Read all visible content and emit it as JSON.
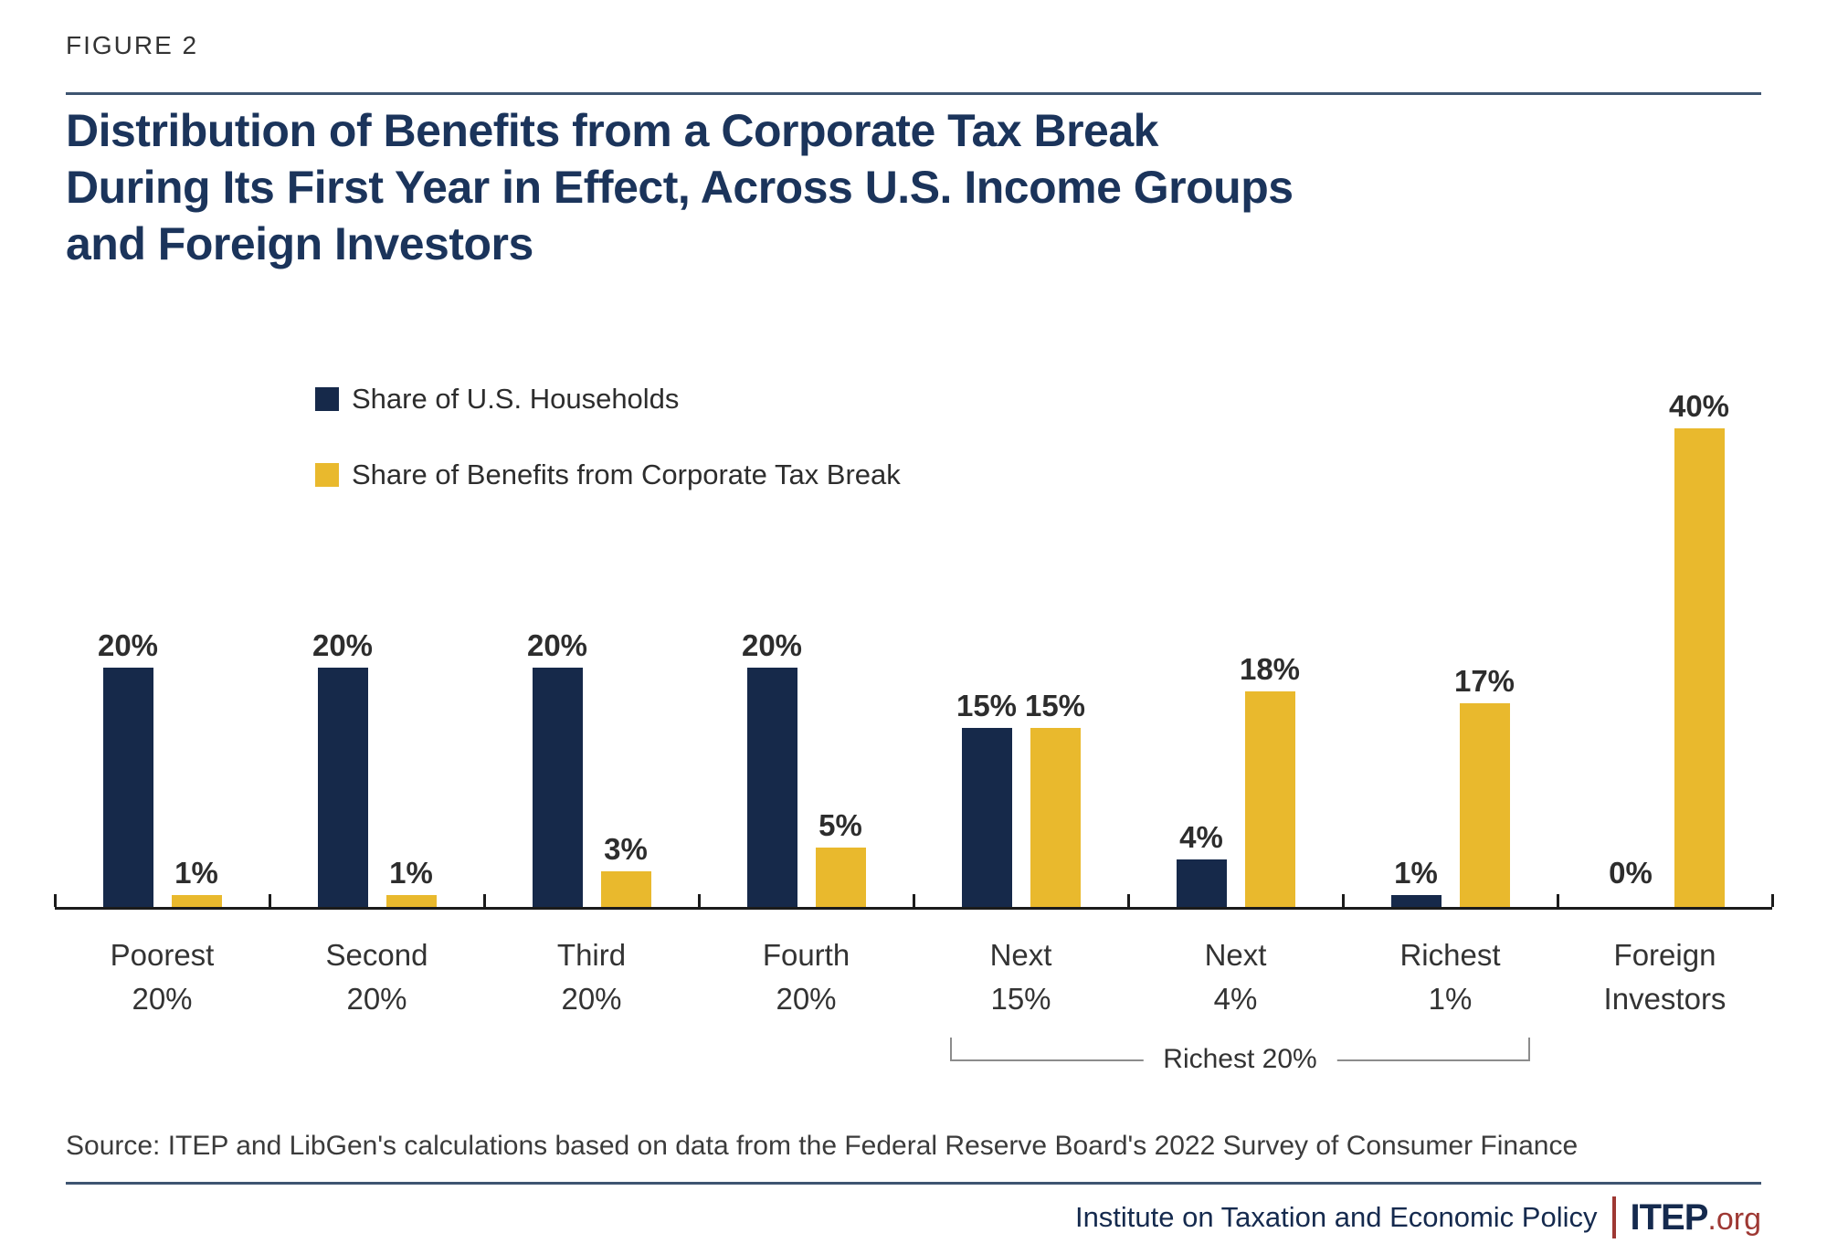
{
  "figure_label": "FIGURE 2",
  "title": "Distribution of Benefits from a Corporate Tax Break\nDuring Its First Year in Effect, Across U.S. Income Groups\nand Foreign Investors",
  "legend": [
    {
      "label": "Share of U.S. Households",
      "color": "#16294A"
    },
    {
      "label": "Share of Benefits from Corporate Tax Break",
      "color": "#E9B92D"
    }
  ],
  "chart_data": {
    "type": "bar",
    "title": "Distribution of Benefits from a Corporate Tax Break During Its First Year in Effect, Across U.S. Income Groups and Foreign Investors",
    "categories": [
      [
        "Poorest",
        "20%"
      ],
      [
        "Second",
        "20%"
      ],
      [
        "Third",
        "20%"
      ],
      [
        "Fourth",
        "20%"
      ],
      [
        "Next",
        "15%"
      ],
      [
        "Next",
        "4%"
      ],
      [
        "Richest",
        "1%"
      ],
      [
        "Foreign",
        "Investors"
      ]
    ],
    "series": [
      {
        "name": "Share of U.S. Households",
        "color": "#16294A",
        "values": [
          20,
          20,
          20,
          20,
          15,
          4,
          1,
          0
        ]
      },
      {
        "name": "Share of Benefits from Corporate Tax Break",
        "color": "#E9B92D",
        "values": [
          1,
          1,
          3,
          5,
          15,
          18,
          17,
          40
        ]
      }
    ],
    "unit": "%",
    "ylim": [
      0,
      40
    ],
    "grid": false,
    "data_labels": true,
    "legend_position": "top-left",
    "bracket": {
      "label": "Richest 20%",
      "from_category": 4,
      "to_category": 6
    }
  },
  "source": "Source: ITEP and LibGen's calculations based on data from the Federal Reserve Board's 2022 Survey of Consumer Finance",
  "footer": {
    "org": "Institute on Taxation and Economic Policy",
    "logo_text": "ITEP",
    "logo_suffix": ".org"
  },
  "colors": {
    "navy_bar": "#16294A",
    "yellow_bar": "#E9B92D",
    "title_navy": "#1B345B",
    "rule_navy": "#3E5571",
    "axis": "#1B1B1B",
    "label_gray": "#333333",
    "bracket_gray": "#8C8C8C",
    "brand_red": "#9E3833"
  }
}
